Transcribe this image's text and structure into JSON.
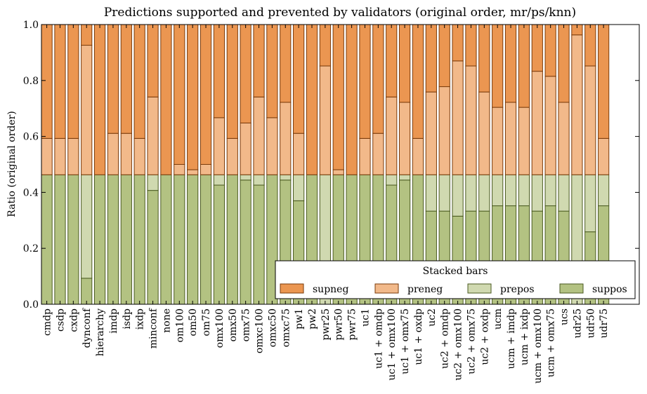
{
  "chart_data": {
    "type": "bar",
    "stacked": true,
    "title": "Predictions supported and prevented by validators (original order, mr/ps/knn)",
    "xlabel": "",
    "ylabel": "Ratio (original order)",
    "ylim": [
      0,
      1
    ],
    "yticks": [
      "0.0",
      "0.2",
      "0.4",
      "0.6",
      "0.8",
      "1.0"
    ],
    "grid": false,
    "legend": {
      "title": "Stacked bars",
      "placement": "bottom-right",
      "entries": [
        "supneg",
        "preneg",
        "prepos",
        "suppos"
      ]
    },
    "colors": {
      "supneg": "#eb9651",
      "preneg": "#f2b98a",
      "prepos": "#d0d9b0",
      "suppos": "#b3c282"
    },
    "categories": [
      "cmdp",
      "csdp",
      "cxdp",
      "dynconf",
      "hierarchy",
      "imdp",
      "isdp",
      "ixdp",
      "minconf",
      "none",
      "om100",
      "om50",
      "om75",
      "omx100",
      "omx50",
      "omx75",
      "omxc100",
      "omxc50",
      "omxc75",
      "pw1",
      "pw2",
      "pwr25",
      "pwr50",
      "pwr75",
      "uc1",
      "uc1 + omdp",
      "uc1 + omx100",
      "uc1 + omx75",
      "uc1 + oxdp",
      "uc2",
      "uc2 + omdp",
      "uc2 + omx100",
      "uc2 + omx75",
      "uc2 + oxdp",
      "ucm",
      "ucm + imdp",
      "ucm + ixdp",
      "ucm + omx100",
      "ucm + omx75",
      "ucs",
      "udr25",
      "udr50",
      "udr75"
    ],
    "series": [
      {
        "name": "suppos",
        "values": [
          0.463,
          0.463,
          0.463,
          0.093,
          0.463,
          0.463,
          0.463,
          0.463,
          0.407,
          0.463,
          0.463,
          0.463,
          0.463,
          0.426,
          0.463,
          0.444,
          0.426,
          0.463,
          0.444,
          0.37,
          0.463,
          0.0,
          0.463,
          0.463,
          0.463,
          0.463,
          0.426,
          0.444,
          0.463,
          0.333,
          0.333,
          0.315,
          0.333,
          0.333,
          0.352,
          0.352,
          0.352,
          0.333,
          0.352,
          0.333,
          0.0,
          0.259,
          0.352
        ]
      },
      {
        "name": "prepos",
        "values": [
          0,
          0,
          0,
          0.37,
          0,
          0,
          0,
          0,
          0.056,
          0,
          0,
          0,
          0,
          0.037,
          0,
          0.019,
          0.037,
          0,
          0.019,
          0.093,
          0,
          0.463,
          0,
          0,
          0,
          0,
          0.037,
          0.019,
          0,
          0.13,
          0.13,
          0.148,
          0.13,
          0.13,
          0.111,
          0.111,
          0.111,
          0.13,
          0.111,
          0.13,
          0.463,
          0.204,
          0.111
        ]
      },
      {
        "name": "preneg",
        "values": [
          0.13,
          0.13,
          0.13,
          0.463,
          0,
          0.148,
          0.148,
          0.13,
          0.278,
          0,
          0.037,
          0.018,
          0.037,
          0.204,
          0.13,
          0.185,
          0.278,
          0.204,
          0.259,
          0.148,
          0,
          0.389,
          0.018,
          0,
          0.13,
          0.148,
          0.278,
          0.259,
          0.13,
          0.296,
          0.315,
          0.407,
          0.389,
          0.296,
          0.241,
          0.259,
          0.241,
          0.37,
          0.352,
          0.259,
          0.5,
          0.389,
          0.13
        ]
      },
      {
        "name": "supneg",
        "values": [
          0.407,
          0.407,
          0.407,
          0.074,
          0.537,
          0.389,
          0.389,
          0.407,
          0.259,
          0.537,
          0.5,
          0.519,
          0.5,
          0.333,
          0.407,
          0.352,
          0.259,
          0.333,
          0.278,
          0.389,
          0.537,
          0.148,
          0.519,
          0.537,
          0.407,
          0.389,
          0.259,
          0.278,
          0.407,
          0.241,
          0.222,
          0.13,
          0.148,
          0.241,
          0.296,
          0.278,
          0.296,
          0.167,
          0.185,
          0.278,
          0.037,
          0.148,
          0.407
        ]
      }
    ]
  }
}
